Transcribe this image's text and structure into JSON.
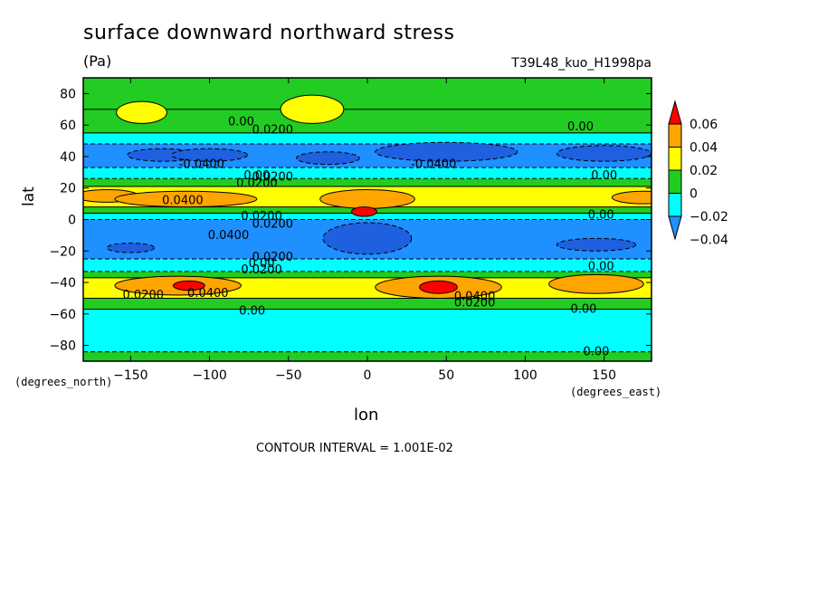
{
  "chart_data": {
    "type": "contour",
    "title": "surface downward northward stress",
    "units": "(Pa)",
    "experiment": "T39L48_kuo_H1998pa",
    "xlabel": "lon",
    "ylabel": "lat",
    "x_units": "(degrees_east)",
    "y_units": "(degrees_north)",
    "xlim": [
      -180,
      180
    ],
    "ylim": [
      -90,
      90
    ],
    "x_ticks": [
      -150,
      -100,
      -50,
      0,
      50,
      100,
      150
    ],
    "y_ticks": [
      80,
      60,
      40,
      20,
      0,
      -20,
      -40,
      -60,
      -80
    ],
    "contour_interval": "CONTOUR INTERVAL = 1.001E-02",
    "colorbar": {
      "labels": [
        "0.06",
        "0.04",
        "0.02",
        "0",
        "−0.02",
        "−0.04"
      ],
      "colors": [
        "#ff0000",
        "#ffa500",
        "#ffff00",
        "#22cc22",
        "#00ffff",
        "#1e90ff"
      ]
    },
    "bands": [
      {
        "lat": [
          70,
          90
        ],
        "value": 0.01,
        "color": "#22cc22"
      },
      {
        "lat": [
          55,
          70
        ],
        "value": 0.0,
        "color": "#22cc22"
      },
      {
        "lat": [
          48,
          55
        ],
        "value": -0.01,
        "color": "#00ffff"
      },
      {
        "lat": [
          33,
          48
        ],
        "value": -0.03,
        "color": "#1e90ff"
      },
      {
        "lat": [
          26,
          33
        ],
        "value": -0.01,
        "color": "#00ffff"
      },
      {
        "lat": [
          21,
          26
        ],
        "value": 0.01,
        "color": "#22cc22"
      },
      {
        "lat": [
          8,
          21
        ],
        "value": 0.03,
        "color": "#ffff00"
      },
      {
        "lat": [
          4,
          8
        ],
        "value": 0.01,
        "color": "#22cc22"
      },
      {
        "lat": [
          0,
          4
        ],
        "value": -0.01,
        "color": "#00ffff"
      },
      {
        "lat": [
          -25,
          0
        ],
        "value": -0.03,
        "color": "#1e90ff"
      },
      {
        "lat": [
          -33,
          -25
        ],
        "value": -0.01,
        "color": "#00ffff"
      },
      {
        "lat": [
          -37,
          -33
        ],
        "value": 0.01,
        "color": "#22cc22"
      },
      {
        "lat": [
          -50,
          -37
        ],
        "value": 0.03,
        "color": "#ffff00"
      },
      {
        "lat": [
          -57,
          -50
        ],
        "value": 0.01,
        "color": "#22cc22"
      },
      {
        "lat": [
          -84,
          -57
        ],
        "value": -0.01,
        "color": "#00ffff"
      },
      {
        "lat": [
          -90,
          -84
        ],
        "value": 0.01,
        "color": "#22cc22"
      }
    ],
    "blobs": [
      {
        "lon": -143,
        "lat": 68,
        "rlon": 16,
        "rlat": 7,
        "value": 0.03,
        "color": "#ffff00"
      },
      {
        "lon": -35,
        "lat": 70,
        "rlon": 20,
        "rlat": 9,
        "value": 0.03,
        "color": "#ffff00"
      },
      {
        "lon": -130,
        "lat": 41,
        "rlon": 22,
        "rlat": 4,
        "value": -0.05,
        "color": "#1e60e0"
      },
      {
        "lon": -100,
        "lat": 41,
        "rlon": 24,
        "rlat": 4,
        "value": -0.05,
        "color": "#1e60e0"
      },
      {
        "lon": 50,
        "lat": 43,
        "rlon": 45,
        "rlat": 6,
        "value": -0.05,
        "color": "#1e60e0"
      },
      {
        "lon": 150,
        "lat": 42,
        "rlon": 30,
        "rlat": 5,
        "value": -0.05,
        "color": "#1e60e0"
      },
      {
        "lon": -25,
        "lat": 39,
        "rlon": 20,
        "rlat": 4,
        "value": -0.05,
        "color": "#1e60e0"
      },
      {
        "lon": -165,
        "lat": 15,
        "rlon": 20,
        "rlat": 4,
        "value": 0.04,
        "color": "#ffa500"
      },
      {
        "lon": -115,
        "lat": 13,
        "rlon": 45,
        "rlat": 5,
        "value": 0.04,
        "color": "#ffa500"
      },
      {
        "lon": 0,
        "lat": 13,
        "rlon": 30,
        "rlat": 6,
        "value": 0.04,
        "color": "#ffa500"
      },
      {
        "lon": 175,
        "lat": 14,
        "rlon": 20,
        "rlat": 4,
        "value": 0.04,
        "color": "#ffa500"
      },
      {
        "lon": -2,
        "lat": 5,
        "rlon": 8,
        "rlat": 3,
        "value": 0.06,
        "color": "#ff0000"
      },
      {
        "lon": -150,
        "lat": -18,
        "rlon": 15,
        "rlat": 3,
        "value": -0.05,
        "color": "#1e60e0"
      },
      {
        "lon": 0,
        "lat": -12,
        "rlon": 28,
        "rlat": 10,
        "value": -0.05,
        "color": "#1e60e0"
      },
      {
        "lon": 145,
        "lat": -16,
        "rlon": 25,
        "rlat": 4,
        "value": -0.05,
        "color": "#1e60e0"
      },
      {
        "lon": -120,
        "lat": -42,
        "rlon": 40,
        "rlat": 6,
        "value": 0.04,
        "color": "#ffa500"
      },
      {
        "lon": 45,
        "lat": -43,
        "rlon": 40,
        "rlat": 7,
        "value": 0.04,
        "color": "#ffa500"
      },
      {
        "lon": 145,
        "lat": -41,
        "rlon": 30,
        "rlat": 6,
        "value": 0.04,
        "color": "#ffa500"
      },
      {
        "lon": -113,
        "lat": -42,
        "rlon": 10,
        "rlat": 3,
        "value": 0.06,
        "color": "#ff0000"
      },
      {
        "lon": 45,
        "lat": -43,
        "rlon": 12,
        "rlat": 4,
        "value": 0.06,
        "color": "#ff0000"
      }
    ],
    "contour_labels": [
      {
        "lon": -80,
        "lat": 62,
        "text": "0.00"
      },
      {
        "lon": -60,
        "lat": 57,
        "text": "0.0200"
      },
      {
        "lon": -105,
        "lat": 35,
        "text": "-0.0400"
      },
      {
        "lon": -70,
        "lat": 28,
        "text": "0.00"
      },
      {
        "lon": -60,
        "lat": 27,
        "text": "0.0200"
      },
      {
        "lon": -70,
        "lat": 23,
        "text": "0.0200"
      },
      {
        "lon": -117,
        "lat": 12,
        "text": "0.0400"
      },
      {
        "lon": 42,
        "lat": 35,
        "text": "-0.0400"
      },
      {
        "lon": 135,
        "lat": 59,
        "text": "0.00"
      },
      {
        "lon": 150,
        "lat": 28,
        "text": "0.00"
      },
      {
        "lon": -67,
        "lat": 2,
        "text": "0.0200"
      },
      {
        "lon": -60,
        "lat": -3,
        "text": "0.0200"
      },
      {
        "lon": -88,
        "lat": -10,
        "text": "0.0400"
      },
      {
        "lon": -60,
        "lat": -24,
        "text": "0.0200"
      },
      {
        "lon": -67,
        "lat": -28,
        "text": "0.00"
      },
      {
        "lon": -67,
        "lat": -32,
        "text": "0.0200"
      },
      {
        "lon": -142,
        "lat": -48,
        "text": "0.0200"
      },
      {
        "lon": -101,
        "lat": -47,
        "text": "0.0400"
      },
      {
        "lon": -73,
        "lat": -58,
        "text": "0.00"
      },
      {
        "lon": 68,
        "lat": -49,
        "text": "0.0400"
      },
      {
        "lon": 68,
        "lat": -53,
        "text": "0.0200"
      },
      {
        "lon": 148,
        "lat": 3,
        "text": "0.00"
      },
      {
        "lon": 148,
        "lat": -30,
        "text": "0.00"
      },
      {
        "lon": 137,
        "lat": -57,
        "text": "0.00"
      },
      {
        "lon": 145,
        "lat": -84,
        "text": "0.00"
      }
    ]
  }
}
